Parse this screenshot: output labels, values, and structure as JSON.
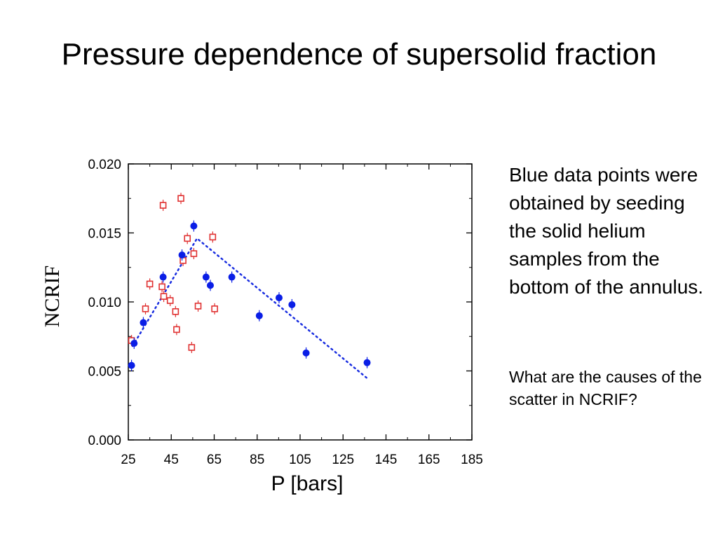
{
  "slide": {
    "title": "Pressure dependence of supersolid fraction",
    "note_main": "Blue data points were obtained by seeding the solid helium samples from the bottom of the annulus.",
    "note_question": "What are the causes of the scatter in NCRIF?"
  },
  "colors": {
    "blue_series": "#0a1ee6",
    "red_series": "#e03030",
    "trend_line": "#1a2ee0",
    "axis": "#000000"
  },
  "chart_data": {
    "type": "scatter",
    "xlabel": "P [bars]",
    "ylabel": "NCRIF",
    "xlim": [
      25,
      185
    ],
    "ylim": [
      0.0,
      0.02
    ],
    "x_ticks": [
      "25",
      "45",
      "65",
      "85",
      "105",
      "125",
      "145",
      "165",
      "185"
    ],
    "y_ticks": [
      "0.000",
      "0.005",
      "0.010",
      "0.015",
      "0.020"
    ],
    "grid": false,
    "series": [
      {
        "marker": "filled-circle",
        "color": "#0a1ee6",
        "x": [
          26.5,
          27.7,
          32,
          41.2,
          50,
          55.5,
          61.2,
          63.2,
          73.2,
          86,
          95.2,
          101.2,
          107.8,
          136.2
        ],
        "y": [
          0.0054,
          0.007,
          0.0085,
          0.0118,
          0.0134,
          0.0155,
          0.0118,
          0.0112,
          0.0118,
          0.009,
          0.0103,
          0.0098,
          0.0063,
          0.0056
        ]
      },
      {
        "marker": "open-square",
        "color": "#e03030",
        "x": [
          26.5,
          33,
          35,
          40.7,
          41.2,
          41.5,
          44.5,
          47,
          47.5,
          49.5,
          50.5,
          52.5,
          54.5,
          55.5,
          57.5,
          64.3,
          65.2
        ],
        "y": [
          0.0072,
          0.0095,
          0.0113,
          0.0111,
          0.017,
          0.0104,
          0.0101,
          0.0093,
          0.008,
          0.0175,
          0.013,
          0.0146,
          0.0067,
          0.0135,
          0.0097,
          0.0147,
          0.0095
        ]
      },
      {
        "type": "line",
        "style": "dotted",
        "color": "#1a2ee0",
        "x": [
          27,
          57,
          136
        ],
        "y": [
          0.0068,
          0.0146,
          0.0045
        ]
      }
    ]
  }
}
